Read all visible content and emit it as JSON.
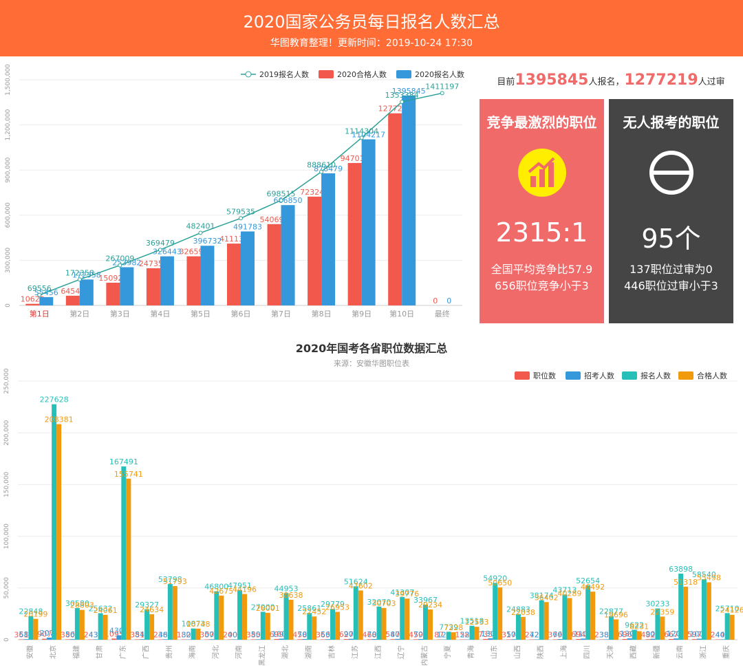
{
  "header": {
    "title": "2020国家公务员每日报名人数汇总",
    "subtitle": "华图教育整理！更新时间：2019-10-24 17:30"
  },
  "summary": {
    "prefix": "目前",
    "registered": "1395845",
    "mid": "人报名，",
    "passed": "1277219",
    "suffix": "人过审"
  },
  "cards": [
    {
      "title": "竞争最激烈的职位",
      "big": "2315:1",
      "line1": "全国平均竞争比57.9",
      "line2": "656职位竞争小于3",
      "icon": "bar-chart-icon",
      "bg": "#f06a6a"
    },
    {
      "title": "无人报考的职位",
      "big": "95个",
      "line1": "137职位过审为0",
      "line2": "446职位过审小于3",
      "icon": "empty-set-icon",
      "bg": "#454545"
    }
  ],
  "chart_data": [
    {
      "type": "bar",
      "categories": [
        "第1日",
        "第2日",
        "第3日",
        "第4日",
        "第5日",
        "第6日",
        "第7日",
        "第8日",
        "第9日",
        "第10日",
        "最终"
      ],
      "ylim": [
        0,
        1500000
      ],
      "yticks": [
        0,
        300000,
        600000,
        900000,
        1200000,
        1500000
      ],
      "ytick_labels": [
        "0",
        "300,000",
        "600,000",
        "900,000",
        "1,200,000",
        "1,500,000"
      ],
      "series": [
        {
          "name": "2019报名人数",
          "type": "line",
          "color": "#2aa198",
          "values": [
            69556,
            172358,
            267009,
            369479,
            482401,
            579535,
            698515,
            888610,
            1114304,
            1353384,
            1411197
          ]
        },
        {
          "name": "2020合格人数",
          "type": "bar",
          "color": "#f2584c",
          "values": [
            10629,
            64548,
            150922,
            247354,
            326591,
            411136,
            540694,
            723243,
            947017,
            1277219,
            0
          ]
        },
        {
          "name": "2020报名人数",
          "type": "bar",
          "color": "#3498db",
          "values": [
            55456,
            172358,
            253982,
            326443,
            396732,
            491783,
            666850,
            878479,
            1104217,
            1395845,
            0
          ]
        }
      ],
      "highlight_category": "第1日"
    },
    {
      "type": "bar",
      "title": "2020年国考各省职位数据汇总",
      "subtitle": "来源：安徽华图职位表",
      "categories": [
        "安徽",
        "北京",
        "福建",
        "甘肃",
        "广东",
        "广西",
        "贵州",
        "海南",
        "河北",
        "河南",
        "黑龙江",
        "湖北",
        "湖南",
        "吉林",
        "江苏",
        "江西",
        "辽宁",
        "内蒙古",
        "宁夏",
        "青海",
        "山东",
        "山西",
        "陕西",
        "上海",
        "四川",
        "天津",
        "西藏",
        "新疆",
        "云南",
        "浙江",
        "重庆"
      ],
      "ylim": [
        0,
        250000
      ],
      "yticks": [
        0,
        50000,
        100000,
        150000,
        200000,
        250000
      ],
      "ytick_labels": [
        "0",
        "50,000",
        "100,000",
        "150,000",
        "200,000",
        "250,000"
      ],
      "series": [
        {
          "name": "职位数",
          "color": "#f2584c",
          "values": [
            361,
            907,
            380,
            243,
            1095,
            381,
            236,
            182,
            307,
            200,
            385,
            699,
            458,
            363,
            627,
            468,
            547,
            459,
            87,
            158,
            735,
            317,
            272,
            379,
            694,
            238,
            696,
            482,
            667,
            597,
            244
          ]
        },
        {
          "name": "招考人数",
          "color": "#3498db",
          "values": [
            580,
            2077,
            560,
            430,
            4300,
            540,
            480,
            300,
            500,
            400,
            500,
            1000,
            700,
            560,
            900,
            700,
            800,
            700,
            120,
            220,
            1300,
            500,
            420,
            660,
            1100,
            380,
            1300,
            900,
            1200,
            1000,
            400
          ]
        },
        {
          "name": "报名人数",
          "color": "#27c0b8",
          "values": [
            22848,
            227628,
            30580,
            25632,
            167491,
            29327,
            53798,
            10873,
            46800,
            47951,
            27000,
            44953,
            25861,
            29779,
            51624,
            32070,
            41307,
            33967,
            7739,
            13518,
            54920,
            24883,
            38174,
            43713,
            52654,
            22877,
            9622,
            30233,
            63898,
            58540,
            25710
          ]
        },
        {
          "name": "合格人数",
          "color": "#f29a0e",
          "values": [
            20199,
            208381,
            28803,
            24061,
            155741,
            24634,
            51793,
            10748,
            42675,
            44196,
            26001,
            38638,
            22452,
            26953,
            47602,
            30703,
            39776,
            29234,
            7228,
            12533,
            50650,
            22038,
            36402,
            40289,
            46492,
            19696,
            8231,
            22359,
            51318,
            55498,
            24126
          ]
        }
      ]
    }
  ]
}
